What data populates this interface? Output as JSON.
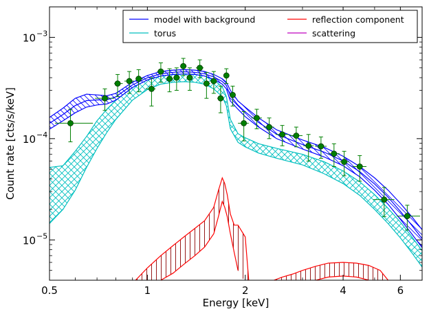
{
  "chart_data": {
    "type": "scatter",
    "xlabel": "Energy [keV]",
    "ylabel": "Count rate [cts/s/keV]",
    "xscale": "log",
    "yscale": "log",
    "xlim": [
      0.5,
      7.0
    ],
    "ylim": [
      4e-06,
      0.002
    ],
    "x_ticks": [
      {
        "value": 0.5,
        "label": "0.5"
      },
      {
        "value": 1,
        "label": "1"
      },
      {
        "value": 2,
        "label": "2"
      },
      {
        "value": 4,
        "label": "4"
      },
      {
        "value": 6,
        "label": "6"
      }
    ],
    "y_ticks": [
      {
        "value": 1e-05,
        "base": "10",
        "exp": "−5"
      },
      {
        "value": 0.0001,
        "base": "10",
        "exp": "−4"
      },
      {
        "value": 0.001,
        "base": "10",
        "exp": "−3"
      }
    ],
    "legend": {
      "placement": "top-right",
      "columns": 2,
      "entries": [
        {
          "label": "model with background",
          "color": "#0000ff"
        },
        {
          "label": "reflection component",
          "color": "#ff0000"
        },
        {
          "label": "torus",
          "color": "#00bfbf"
        },
        {
          "label": "scattering",
          "color": "#bf00bf"
        }
      ]
    },
    "colors": {
      "data_points": "#007f00",
      "data_point_edge": "#003300",
      "model": "#0000ff",
      "torus": "#00bfbf",
      "reflection": "#ff0000",
      "reflection_hatch": "#8b0000"
    },
    "data_points": [
      {
        "x": 0.58,
        "y": 0.000142,
        "xlo": 0.52,
        "xhi": 0.68,
        "ylo": 9.3e-05,
        "yhi": 0.000195
      },
      {
        "x": 0.74,
        "y": 0.00025,
        "xlo": 0.69,
        "xhi": 0.79,
        "ylo": 0.00019,
        "yhi": 0.00031
      },
      {
        "x": 0.81,
        "y": 0.00035,
        "xlo": 0.79,
        "xhi": 0.84,
        "ylo": 0.00026,
        "yhi": 0.00043
      },
      {
        "x": 0.88,
        "y": 0.00037,
        "xlo": 0.85,
        "xhi": 0.91,
        "ylo": 0.00028,
        "yhi": 0.00046
      },
      {
        "x": 0.94,
        "y": 0.00039,
        "xlo": 0.92,
        "xhi": 0.97,
        "ylo": 0.00029,
        "yhi": 0.00048
      },
      {
        "x": 1.03,
        "y": 0.00031,
        "xlo": 0.99,
        "xhi": 1.06,
        "ylo": 0.00021,
        "yhi": 0.0004
      },
      {
        "x": 1.1,
        "y": 0.00046,
        "xlo": 1.07,
        "xhi": 1.13,
        "ylo": 0.00036,
        "yhi": 0.00056
      },
      {
        "x": 1.17,
        "y": 0.00039,
        "xlo": 1.14,
        "xhi": 1.2,
        "ylo": 0.00029,
        "yhi": 0.00049
      },
      {
        "x": 1.23,
        "y": 0.0004,
        "xlo": 1.2,
        "xhi": 1.26,
        "ylo": 0.0003,
        "yhi": 0.0005
      },
      {
        "x": 1.29,
        "y": 0.00052,
        "xlo": 1.26,
        "xhi": 1.32,
        "ylo": 0.00042,
        "yhi": 0.00062
      },
      {
        "x": 1.35,
        "y": 0.0004,
        "xlo": 1.32,
        "xhi": 1.38,
        "ylo": 0.0003,
        "yhi": 0.0005
      },
      {
        "x": 1.45,
        "y": 0.0005,
        "xlo": 1.41,
        "xhi": 1.49,
        "ylo": 0.0004,
        "yhi": 0.0006
      },
      {
        "x": 1.52,
        "y": 0.00035,
        "xlo": 1.49,
        "xhi": 1.56,
        "ylo": 0.00025,
        "yhi": 0.00045
      },
      {
        "x": 1.6,
        "y": 0.00037,
        "xlo": 1.56,
        "xhi": 1.64,
        "ylo": 0.00028,
        "yhi": 0.00046
      },
      {
        "x": 1.68,
        "y": 0.00025,
        "xlo": 1.64,
        "xhi": 1.72,
        "ylo": 0.00018,
        "yhi": 0.00033
      },
      {
        "x": 1.75,
        "y": 0.00042,
        "xlo": 1.72,
        "xhi": 1.78,
        "ylo": 0.00035,
        "yhi": 0.00049
      },
      {
        "x": 1.83,
        "y": 0.00027,
        "xlo": 1.79,
        "xhi": 1.87,
        "ylo": 0.00021,
        "yhi": 0.00033
      },
      {
        "x": 1.98,
        "y": 0.000142,
        "xlo": 1.9,
        "xhi": 2.05,
        "ylo": 9.5e-05,
        "yhi": 0.000185
      },
      {
        "x": 2.17,
        "y": 0.00016,
        "xlo": 2.09,
        "xhi": 2.25,
        "ylo": 0.000125,
        "yhi": 0.000195
      },
      {
        "x": 2.37,
        "y": 0.00013,
        "xlo": 2.28,
        "xhi": 2.45,
        "ylo": 0.0001,
        "yhi": 0.00016
      },
      {
        "x": 2.6,
        "y": 0.00011,
        "xlo": 2.48,
        "xhi": 2.72,
        "ylo": 8.5e-05,
        "yhi": 0.000135
      },
      {
        "x": 2.87,
        "y": 0.000107,
        "xlo": 2.74,
        "xhi": 3.0,
        "ylo": 8.3e-05,
        "yhi": 0.00013
      },
      {
        "x": 3.13,
        "y": 8.5e-05,
        "xlo": 3.02,
        "xhi": 3.25,
        "ylo": 6e-05,
        "yhi": 0.00011
      },
      {
        "x": 3.42,
        "y": 8.4e-05,
        "xlo": 3.28,
        "xhi": 3.56,
        "ylo": 6.4e-05,
        "yhi": 0.000104
      },
      {
        "x": 3.75,
        "y": 7.1e-05,
        "xlo": 3.6,
        "xhi": 3.9,
        "ylo": 5.3e-05,
        "yhi": 8.9e-05
      },
      {
        "x": 4.03,
        "y": 5.9e-05,
        "xlo": 3.9,
        "xhi": 4.16,
        "ylo": 4.3e-05,
        "yhi": 7.5e-05
      },
      {
        "x": 4.5,
        "y": 5.3e-05,
        "xlo": 4.28,
        "xhi": 4.72,
        "ylo": 3.8e-05,
        "yhi": 6.8e-05
      },
      {
        "x": 5.35,
        "y": 2.5e-05,
        "xlo": 4.95,
        "xhi": 5.75,
        "ylo": 1.7e-05,
        "yhi": 3.3e-05
      },
      {
        "x": 6.3,
        "y": 1.72e-05,
        "xlo": 5.85,
        "xhi": 6.9,
        "ylo": 1.25e-05,
        "yhi": 2.2e-05
      }
    ],
    "model_band": {
      "x": [
        0.5,
        0.55,
        0.6,
        0.65,
        0.7,
        0.75,
        0.8,
        0.9,
        1.0,
        1.1,
        1.2,
        1.3,
        1.4,
        1.5,
        1.6,
        1.7,
        1.75,
        1.8,
        1.9,
        2.0,
        2.2,
        2.5,
        3.0,
        3.5,
        4.0,
        4.5,
        5.0,
        5.5,
        6.0,
        6.5,
        7.0
      ],
      "upper": [
        0.000162,
        0.0002,
        0.00025,
        0.000275,
        0.00027,
        0.000265,
        0.00028,
        0.00036,
        0.00042,
        0.00046,
        0.000475,
        0.00048,
        0.000475,
        0.00046,
        0.00043,
        0.00039,
        0.00036,
        0.0003,
        0.000235,
        0.000205,
        0.00016,
        0.000122,
        9.7e-05,
        8.2e-05,
        6.7e-05,
        5.3e-05,
        4.1e-05,
        3.1e-05,
        2.3e-05,
        1.7e-05,
        1.26e-05
      ],
      "lower": [
        0.000124,
        0.00015,
        0.00018,
        0.000205,
        0.000215,
        0.00022,
        0.00024,
        0.00032,
        0.00038,
        0.000415,
        0.00043,
        0.000435,
        0.00043,
        0.000415,
        0.000385,
        0.000345,
        0.00031,
        0.000235,
        0.000195,
        0.000165,
        0.00013,
        0.0001,
        7.9e-05,
        6.6e-05,
        5.4e-05,
        4.2e-05,
        3.1e-05,
        2.25e-05,
        1.6e-05,
        1.15e-05,
        8.4e-06
      ]
    },
    "torus_band": {
      "x": [
        0.5,
        0.55,
        0.6,
        0.65,
        0.7,
        0.75,
        0.8,
        0.9,
        1.0,
        1.1,
        1.2,
        1.3,
        1.4,
        1.5,
        1.6,
        1.7,
        1.75,
        1.8,
        1.9,
        2.0,
        2.2,
        2.5,
        3.0,
        3.5,
        4.0,
        4.5,
        5.0,
        5.5,
        6.0,
        6.5,
        7.0
      ],
      "upper": [
        5.2e-05,
        5.4e-05,
        7.5e-05,
        0.000105,
        0.00015,
        0.000195,
        0.00024,
        0.00032,
        0.00038,
        0.000415,
        0.00043,
        0.000435,
        0.00043,
        0.000415,
        0.00038,
        0.000325,
        0.00026,
        0.000155,
        0.000112,
        0.000102,
        8.9e-05,
        8e-05,
        7e-05,
        5.9e-05,
        4.8e-05,
        3.75e-05,
        2.8e-05,
        2.05e-05,
        1.5e-05,
        1.08e-05,
        7.8e-06
      ],
      "lower": [
        1.45e-05,
        2e-05,
        3.1e-05,
        5.2e-05,
        8e-05,
        0.000115,
        0.000155,
        0.00024,
        0.000305,
        0.000345,
        0.00036,
        0.000365,
        0.00036,
        0.000345,
        0.00031,
        0.00026,
        0.00021,
        0.000125,
        9.2e-05,
        8.3e-05,
        7.2e-05,
        6.4e-05,
        5.5e-05,
        4.5e-05,
        3.6e-05,
        2.75e-05,
        2e-05,
        1.45e-05,
        1.05e-05,
        7.5e-06,
        5.4e-06
      ]
    },
    "reflection_low": {
      "x": [
        0.92,
        1.0,
        1.1,
        1.2,
        1.3,
        1.4,
        1.5,
        1.6,
        1.65,
        1.7,
        1.73,
        1.76,
        1.8,
        1.85,
        1.9,
        2.0,
        2.05
      ],
      "upper": [
        4e-06,
        5.3e-06,
        7e-06,
        8.8e-06,
        1.08e-05,
        1.3e-05,
        1.55e-05,
        2.1e-05,
        3e-05,
        4.1e-05,
        3.6e-05,
        2.8e-05,
        1.8e-05,
        1.4e-05,
        1.4e-05,
        1.07e-05,
        4e-06
      ],
      "lower": [
        null,
        null,
        4e-06,
        4.7e-06,
        5.8e-06,
        7e-06,
        8.5e-06,
        1.15e-05,
        1.65e-05,
        2.4e-05,
        2.1e-05,
        1.7e-05,
        1.15e-05,
        7.5e-06,
        5e-06,
        null,
        null
      ]
    },
    "reflection_high": {
      "x": [
        2.45,
        2.6,
        2.8,
        3.0,
        3.3,
        3.6,
        4.0,
        4.4,
        4.8,
        5.2,
        5.5
      ],
      "upper": [
        4e-06,
        4.3e-06,
        4.6e-06,
        5e-06,
        5.5e-06,
        5.9e-06,
        6e-06,
        5.9e-06,
        5.6e-06,
        5e-06,
        4e-06
      ],
      "lower": [
        null,
        null,
        null,
        null,
        4e-06,
        4.3e-06,
        4.4e-06,
        4.3e-06,
        4e-06,
        null,
        null
      ]
    }
  }
}
